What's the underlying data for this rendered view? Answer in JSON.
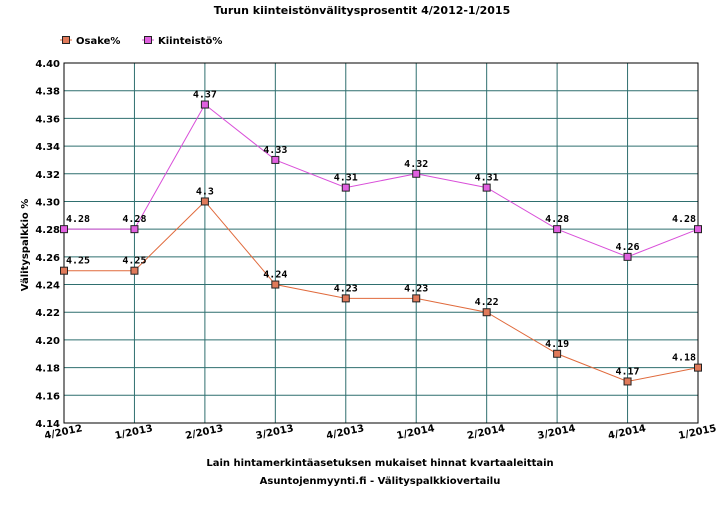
{
  "chart_data": {
    "type": "line",
    "title": "Turun kiinteistönvälitysprosentit 4/2012-1/2015",
    "xlabel": "Lain hintamerkintäasetuksen mukaiset hinnat kvartaaleittain",
    "xlabel2": "Asuntojenmyynti.fi - Välityspalkkiovertailu",
    "ylabel": "Välityspalkkio %",
    "categories": [
      "4/2012",
      "1/2013",
      "2/2013",
      "3/2013",
      "4/2013",
      "1/2014",
      "2/2014",
      "3/2014",
      "4/2014",
      "1/2015"
    ],
    "ylim": [
      4.14,
      4.4
    ],
    "yticks": [
      "4.14",
      "4.16",
      "4.18",
      "4.20",
      "4.22",
      "4.24",
      "4.26",
      "4.28",
      "4.30",
      "4.32",
      "4.34",
      "4.36",
      "4.38",
      "4.40"
    ],
    "grid": true,
    "legend_position": "top-left",
    "series": [
      {
        "name": "Osake%",
        "color": "#e06a3c",
        "marker": "#e07a5a",
        "values": [
          4.25,
          4.25,
          4.3,
          4.24,
          4.23,
          4.23,
          4.22,
          4.19,
          4.17,
          4.18
        ],
        "labels": [
          "4.25",
          "4.25",
          "4.3",
          "4.24",
          "4.23",
          "4.23",
          "4.22",
          "4.19",
          "4.17",
          "4.18"
        ]
      },
      {
        "name": "Kiinteistö%",
        "color": "#d94fd9",
        "marker": "#e060e0",
        "values": [
          4.28,
          4.28,
          4.37,
          4.33,
          4.31,
          4.32,
          4.31,
          4.28,
          4.26,
          4.28
        ],
        "labels": [
          "4.28",
          "4.28",
          "4.37",
          "4.33",
          "4.31",
          "4.32",
          "4.31",
          "4.28",
          "4.26",
          "4.28"
        ]
      }
    ]
  }
}
